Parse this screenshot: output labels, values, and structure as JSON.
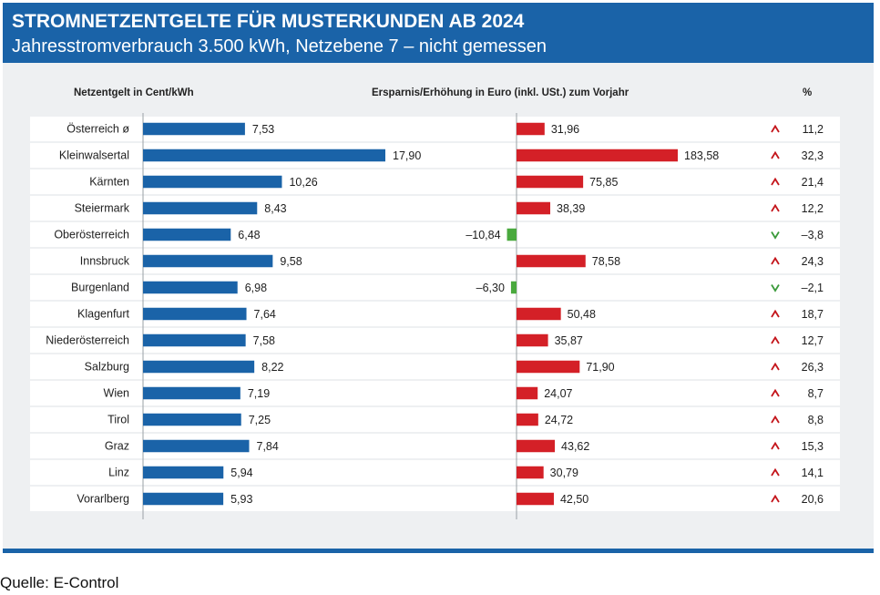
{
  "header": {
    "title": "STROMNETZENTGELTE FÜR MUSTERKUNDEN AB 2024",
    "subtitle": "Jahresstromverbrauch 3.500 kWh, Netzebene 7 – nicht gemessen"
  },
  "columns": {
    "left": "Netzentgelt in Cent/kWh",
    "middle": "Ersparnis/Erhöhung in Euro (inkl. USt.) zum Vorjahr",
    "right": "%"
  },
  "source": "Quelle: E-Control",
  "colors": {
    "blue": "#1a63a8",
    "red": "#d42027",
    "green": "#4aa93e",
    "arrow_up": "#c4151b",
    "arrow_down": "#3a9a3a"
  },
  "chart_data": {
    "type": "bar",
    "categories": [
      "Österreich ø",
      "Kleinwalsertal",
      "Kärnten",
      "Steiermark",
      "Oberösterreich",
      "Innsbruck",
      "Burgenland",
      "Klagenfurt",
      "Niederösterreich",
      "Salzburg",
      "Wien",
      "Tirol",
      "Graz",
      "Linz",
      "Vorarlberg"
    ],
    "series": [
      {
        "name": "Netzentgelt in Cent/kWh",
        "values": [
          7.53,
          17.9,
          10.26,
          8.43,
          6.48,
          9.58,
          6.98,
          7.64,
          7.58,
          8.22,
          7.19,
          7.25,
          7.84,
          5.94,
          5.93
        ],
        "labels": [
          "7,53",
          "17,90",
          "10,26",
          "8,43",
          "6,48",
          "9,58",
          "6,98",
          "7,64",
          "7,58",
          "8,22",
          "7,19",
          "7,25",
          "7,84",
          "5,94",
          "5,93"
        ]
      },
      {
        "name": "Ersparnis/Erhöhung in Euro (inkl. USt.) zum Vorjahr",
        "values": [
          31.96,
          183.58,
          75.85,
          38.39,
          -10.84,
          78.58,
          -6.3,
          50.48,
          35.87,
          71.9,
          24.07,
          24.72,
          43.62,
          30.79,
          42.5
        ],
        "labels": [
          "31,96",
          "183,58",
          "75,85",
          "38,39",
          "–10,84",
          "78,58",
          "–6,30",
          "50,48",
          "35,87",
          "71,90",
          "24,07",
          "24,72",
          "43,62",
          "30,79",
          "42,50"
        ]
      },
      {
        "name": "%",
        "values": [
          11.2,
          32.3,
          21.4,
          12.2,
          -3.8,
          24.3,
          -2.1,
          18.7,
          12.7,
          26.3,
          8.7,
          8.8,
          15.3,
          14.1,
          20.6
        ],
        "labels": [
          "11,2",
          "32,3",
          "21,4",
          "12,2",
          "–3,8",
          "24,3",
          "–2,1",
          "18,7",
          "12,7",
          "26,3",
          "8,7",
          "8,8",
          "15,3",
          "14,1",
          "20,6"
        ]
      }
    ]
  }
}
